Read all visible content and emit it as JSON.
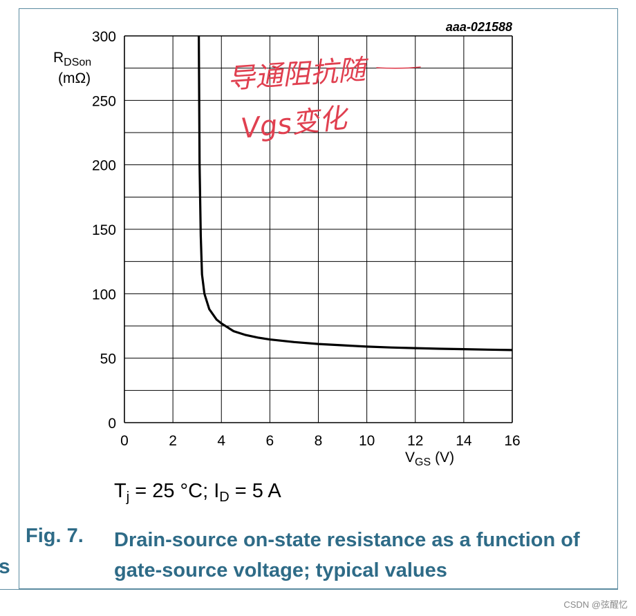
{
  "chart_data": {
    "type": "line",
    "code": "aaa-021588",
    "ylabel_main": "R",
    "ylabel_sub": "DSon",
    "ylabel_unit": "(mΩ)",
    "xlabel_main": "V",
    "xlabel_sub": "GS",
    "xlabel_unit": "(V)",
    "xlim": [
      0,
      16
    ],
    "ylim": [
      0,
      300
    ],
    "x_ticks": [
      0,
      2,
      4,
      6,
      8,
      10,
      12,
      14,
      16
    ],
    "y_ticks": [
      0,
      50,
      100,
      150,
      200,
      250,
      300
    ],
    "x_minor_step": 2,
    "y_minor_step": 25,
    "series": [
      {
        "name": "RDSon",
        "x": [
          3.07,
          3.1,
          3.15,
          3.2,
          3.3,
          3.5,
          3.8,
          4.0,
          4.5,
          5.0,
          5.5,
          6.0,
          7.0,
          8.0,
          9.0,
          10.0,
          11.0,
          12.0,
          13.0,
          14.0,
          15.0,
          16.0
        ],
        "y": [
          300,
          200,
          145,
          115,
          100,
          88,
          80,
          77,
          71,
          68,
          66,
          64.5,
          62.5,
          61,
          60,
          59,
          58.3,
          57.8,
          57.3,
          57,
          56.6,
          56.3
        ]
      }
    ]
  },
  "conditions": {
    "T": "T",
    "T_sub": "j",
    "T_value": " = 25 °C; I",
    "I_sub": "D",
    "I_value": " = 5 A"
  },
  "figure": {
    "number": "Fig. 7.",
    "title": "Drain-source on-state resistance as a function of gate-source voltage; typical values"
  },
  "annotation": {
    "line1": "导通阻抗随",
    "line2": "Vgs变化"
  },
  "left_fragment": "s",
  "watermark": "CSDN @弦醒忆"
}
